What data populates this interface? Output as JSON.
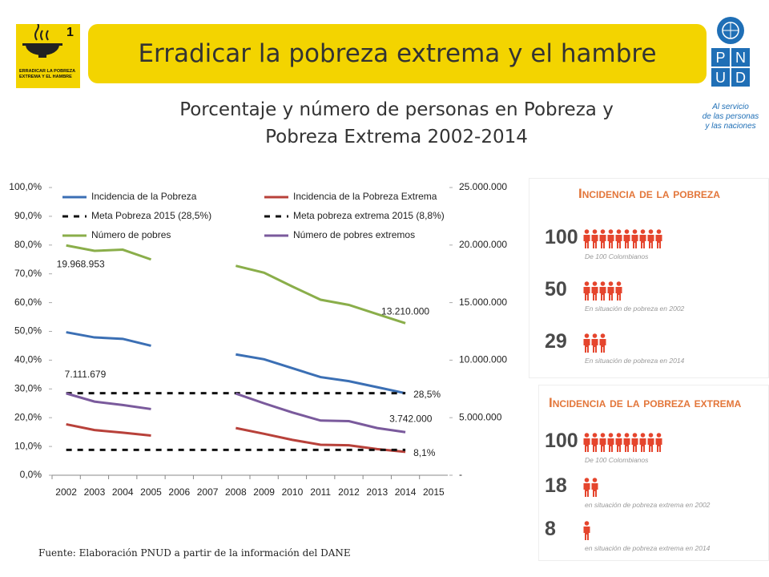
{
  "header": {
    "goal_number": "1",
    "goal_label": "ERRADICAR LA POBREZA EXTREMA Y EL HAMBRE",
    "title": "Erradicar la pobreza extrema y el hambre",
    "org_letters": [
      "P",
      "N",
      "U",
      "D"
    ],
    "org_tagline": [
      "Al servicio",
      "de las personas",
      "y las naciones"
    ]
  },
  "chart_data": {
    "type": "line",
    "title": "Porcentaje  y número de personas en Pobreza y Pobreza Extrema 2002-2014",
    "categories": [
      "2002",
      "2003",
      "2004",
      "2005",
      "2006",
      "2007",
      "2008",
      "2009",
      "2010",
      "2011",
      "2012",
      "2013",
      "2014",
      "2015"
    ],
    "ylim": [
      0,
      100
    ],
    "yticks": [
      {
        "value": 0,
        "label": "0,0%"
      },
      {
        "value": 10,
        "label": "10,0%"
      },
      {
        "value": 20,
        "label": "20,0%"
      },
      {
        "value": 30,
        "label": "30,0%"
      },
      {
        "value": 40,
        "label": "40,0%"
      },
      {
        "value": 50,
        "label": "50,0%"
      },
      {
        "value": 60,
        "label": "60,0%"
      },
      {
        "value": 70,
        "label": "70,0%"
      },
      {
        "value": 80,
        "label": "80,0%"
      },
      {
        "value": 90,
        "label": "90,0%"
      },
      {
        "value": 100,
        "label": "100,0%"
      }
    ],
    "y2lim": [
      0,
      25000000
    ],
    "y2ticks": [
      {
        "value": 0,
        "label": "-"
      },
      {
        "value": 5000000,
        "label": "5.000.000"
      },
      {
        "value": 10000000,
        "label": "10.000.000"
      },
      {
        "value": 15000000,
        "label": "15.000.000"
      },
      {
        "value": 20000000,
        "label": "20.000.000"
      },
      {
        "value": 25000000,
        "label": "25.000.000"
      }
    ],
    "grid": false,
    "series": [
      {
        "name": "Incidencia de la Pobreza",
        "color": "#3b6fb4",
        "dash": false,
        "values": [
          49.7,
          47.9,
          47.4,
          45.0,
          null,
          null,
          42.0,
          40.3,
          37.2,
          34.1,
          32.7,
          30.6,
          28.5,
          null
        ],
        "value_labels": [
          null,
          null,
          null,
          null,
          null,
          null,
          null,
          null,
          null,
          null,
          null,
          null,
          "28,5%",
          null
        ]
      },
      {
        "name": "Incidencia de la Pobreza Extrema",
        "color": "#b8413a",
        "dash": false,
        "values": [
          17.7,
          15.7,
          14.8,
          13.8,
          null,
          null,
          16.4,
          14.4,
          12.3,
          10.6,
          10.4,
          9.1,
          8.1,
          null
        ],
        "value_labels": [
          null,
          null,
          null,
          null,
          null,
          null,
          null,
          null,
          null,
          null,
          null,
          null,
          "8,1%",
          null
        ]
      },
      {
        "name": "Meta Pobreza 2015 (28,5%)",
        "color": "#111111",
        "dash": true,
        "values": [
          28.5,
          28.5,
          28.5,
          28.5,
          28.5,
          28.5,
          28.5,
          28.5,
          28.5,
          28.5,
          28.5,
          28.5,
          28.5,
          null
        ]
      },
      {
        "name": "Meta pobreza extrema 2015 (8,8%)",
        "color": "#111111",
        "dash": true,
        "values": [
          8.8,
          8.8,
          8.8,
          8.8,
          8.8,
          8.8,
          8.8,
          8.8,
          8.8,
          8.8,
          8.8,
          8.8,
          8.8,
          null
        ]
      },
      {
        "name": "Número de pobres",
        "color": "#8aae4a",
        "dash": false,
        "axis": "y2",
        "values": [
          19968953,
          19500000,
          19600000,
          18750000,
          null,
          null,
          18200000,
          17600000,
          16400000,
          15250000,
          14800000,
          14000000,
          13210000,
          null
        ],
        "value_labels": [
          "19.968.953",
          null,
          null,
          null,
          null,
          null,
          null,
          null,
          null,
          null,
          null,
          null,
          "13.210.000",
          null
        ]
      },
      {
        "name": "Número de pobres extremos",
        "color": "#7a5a9c",
        "dash": false,
        "axis": "y2",
        "values": [
          7111679,
          6400000,
          6100000,
          5750000,
          null,
          null,
          7100000,
          6250000,
          5450000,
          4750000,
          4700000,
          4100000,
          3742000,
          null
        ],
        "value_labels": [
          "7.111.679",
          null,
          null,
          null,
          null,
          null,
          null,
          null,
          null,
          null,
          null,
          null,
          "3.742.000",
          null
        ]
      }
    ]
  },
  "infographic": {
    "sections": [
      {
        "heading": "Incidencia de la pobreza",
        "items": [
          {
            "number": "100",
            "caption": "De 100 Colombianos"
          },
          {
            "number": "50",
            "caption": "En situación de pobreza en 2002"
          },
          {
            "number": "29",
            "caption": "En situación de pobreza en 2014"
          }
        ]
      },
      {
        "heading": "Incidencia de la pobreza extrema",
        "items": [
          {
            "number": "100",
            "caption": "De 100 Colombianos"
          },
          {
            "number": "18",
            "caption": "en situación de pobreza extrema en 2002"
          },
          {
            "number": "8",
            "caption": "en situación de pobreza extrema en 2014"
          }
        ]
      }
    ]
  },
  "source": "Fuente: Elaboración PNUD a partir de la información del DANE"
}
